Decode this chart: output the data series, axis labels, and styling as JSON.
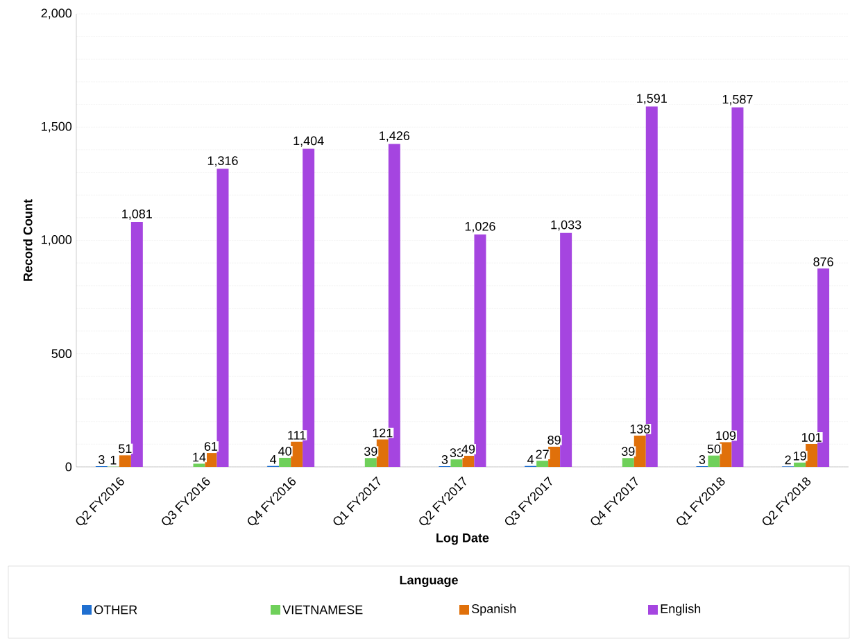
{
  "chart_data": {
    "type": "bar",
    "xlabel": "Log Date",
    "ylabel": "Record Count",
    "legend_title": "Language",
    "legend": "bottom",
    "grid": "y",
    "categories": [
      "Q2 FY2016",
      "Q3 FY2016",
      "Q4 FY2016",
      "Q1 FY2017",
      "Q2 FY2017",
      "Q3 FY2017",
      "Q4 FY2017",
      "Q1 FY2018",
      "Q2 FY2018"
    ],
    "ylim": [
      0,
      2000
    ],
    "yticks": [
      0,
      500,
      {
        "value": 1000,
        "label": "1,000"
      },
      {
        "value": 1500,
        "label": "1,500"
      },
      {
        "value": 2000,
        "label": "2,000"
      }
    ],
    "series": [
      {
        "name": "OTHER",
        "color": "#1f6fd0",
        "values": [
          3,
          null,
          4,
          null,
          3,
          4,
          null,
          3,
          2
        ],
        "value_labels": [
          "3",
          null,
          "4",
          null,
          "3",
          "4",
          null,
          "3",
          "2"
        ]
      },
      {
        "name": "VIETNAMESE",
        "color": "#6fd05a",
        "values": [
          1,
          14,
          40,
          39,
          33,
          27,
          39,
          50,
          19
        ],
        "value_labels": [
          "1",
          "14",
          "40",
          "39",
          "33",
          "27",
          "39",
          "50",
          "19"
        ]
      },
      {
        "name": "Spanish",
        "color": "#e0700a",
        "values": [
          51,
          61,
          111,
          121,
          49,
          89,
          138,
          109,
          101
        ],
        "value_labels": [
          "51",
          "61",
          "111",
          "121",
          "49",
          "89",
          "138",
          "109",
          "101"
        ]
      },
      {
        "name": "English",
        "color": "#a545e0",
        "values": [
          1081,
          1316,
          1404,
          1426,
          1026,
          1033,
          1591,
          1587,
          876
        ],
        "value_labels": [
          "1,081",
          "1,316",
          "1,404",
          "1,426",
          "1,026",
          "1,033",
          "1,591",
          "1,587",
          "876"
        ]
      }
    ]
  }
}
